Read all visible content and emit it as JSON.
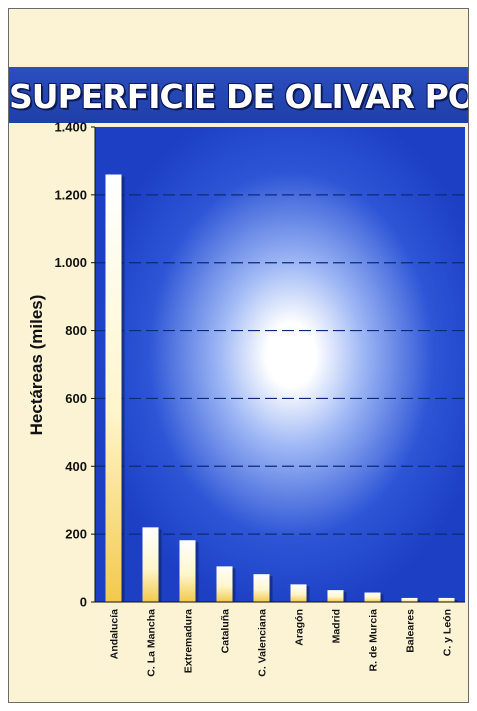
{
  "chart_data": {
    "type": "bar",
    "title": "SUPERFICIE DE OLIVAR POR CCAA",
    "ylabel": "Hectáreas (miles)",
    "xlabel": "",
    "categories": [
      "Andalucía",
      "C. La Mancha",
      "Extremadura",
      "Cataluña",
      "C. Valenciana",
      "Aragón",
      "Madrid",
      "R. de Murcia",
      "Baleares",
      "C. y León"
    ],
    "values": [
      1260,
      220,
      182,
      105,
      82,
      52,
      35,
      28,
      12,
      12
    ],
    "ylim": [
      0,
      1400
    ],
    "yticks": [
      0,
      200,
      400,
      600,
      800,
      1000,
      1200,
      1400
    ],
    "ytick_labels": [
      "0",
      "200",
      "400",
      "600",
      "800",
      "1.000",
      "1.200",
      "1.400"
    ],
    "grid": true,
    "colors": {
      "bar_top": "#ffffff",
      "bar_bottom": "#f2c94c",
      "plot_background": "#1c3fc4",
      "plot_glow": "#ffffff",
      "gridline": "#0d2a78",
      "page_background": "#fbf3d4",
      "title_band": "#2b4fbf"
    }
  }
}
